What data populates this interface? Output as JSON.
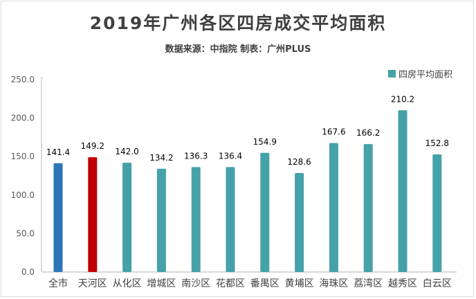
{
  "chart_data": {
    "type": "bar",
    "title": "2019年广州各区四房成交平均面积",
    "subtitle": "数据来源：中指院  制表：广州PLUS",
    "categories": [
      "全市",
      "天河区",
      "从化区",
      "增城区",
      "南沙区",
      "花都区",
      "番禺区",
      "黄埔区",
      "海珠区",
      "荔湾区",
      "越秀区",
      "白云区"
    ],
    "series": [
      {
        "name": "四房平均面积",
        "values": [
          141.4,
          149.2,
          142.0,
          134.2,
          136.3,
          136.4,
          154.9,
          128.6,
          167.6,
          166.2,
          210.2,
          152.8
        ]
      }
    ],
    "value_labels": [
      "141.4",
      "149.2",
      "142.0",
      "134.2",
      "136.3",
      "136.4",
      "154.9",
      "128.6",
      "167.6",
      "166.2",
      "210.2",
      "152.8"
    ],
    "yticks": [
      "0.0",
      "50.0",
      "100.0",
      "150.0",
      "200.0",
      "250.0"
    ],
    "ylim": [
      0,
      250
    ],
    "grid": false,
    "legend_position": "top-right",
    "colors": {
      "default": "#46a1a8",
      "全市": "#2e75b6",
      "天河区": "#c00000"
    }
  }
}
